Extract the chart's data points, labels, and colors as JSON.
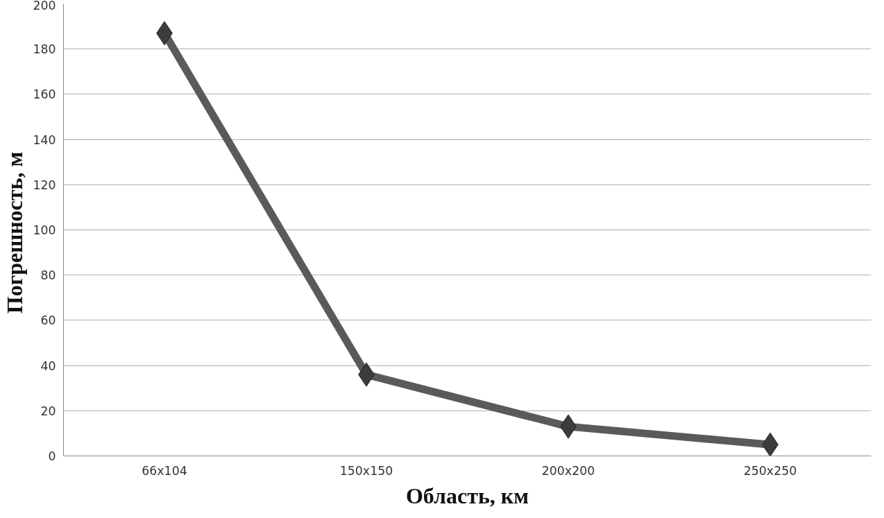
{
  "chart_data": {
    "type": "line",
    "xlabel": "Область, км",
    "ylabel": "Погрешность,  м",
    "categories": [
      "66x104",
      "150x150",
      "200x200",
      "250x250"
    ],
    "series": [
      {
        "color": "#5a5a5a",
        "values": [
          187,
          36,
          13,
          5
        ]
      }
    ],
    "ylim": [
      0,
      200
    ],
    "yticks": [
      0,
      20,
      40,
      60,
      80,
      100,
      120,
      140,
      160,
      180,
      200
    ],
    "grid": "y",
    "marker": "diamond"
  }
}
